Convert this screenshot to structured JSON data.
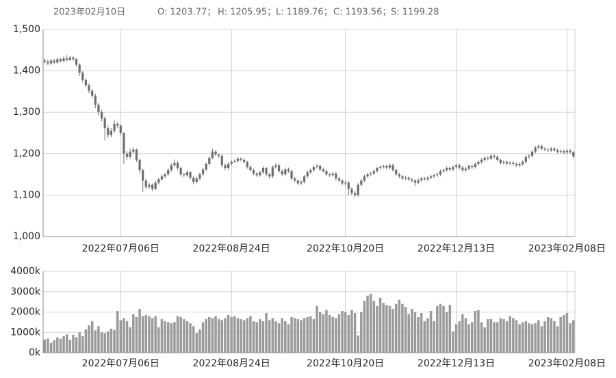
{
  "chart_data": {
    "type": "candlestick",
    "header": {
      "date": "2023年02月10日",
      "items": [
        "O: 1203.77；",
        "H: 1205.95；",
        "L: 1189.76；",
        "C: 1193.56；",
        "S: 1199.28"
      ]
    },
    "categories": [
      null,
      null,
      null,
      null,
      null,
      null,
      null,
      null,
      null,
      null,
      null,
      null,
      null,
      null,
      null,
      null,
      null,
      null,
      null,
      null,
      null,
      null,
      null,
      null,
      "2022年07月06日",
      null,
      null,
      null,
      null,
      null,
      null,
      null,
      null,
      null,
      null,
      null,
      null,
      null,
      null,
      null,
      null,
      null,
      null,
      null,
      null,
      null,
      null,
      null,
      null,
      null,
      null,
      null,
      null,
      null,
      null,
      null,
      null,
      null,
      null,
      "2022年08月24日",
      null,
      null,
      null,
      null,
      null,
      null,
      null,
      null,
      null,
      null,
      null,
      null,
      null,
      null,
      null,
      null,
      null,
      null,
      null,
      null,
      null,
      null,
      null,
      null,
      null,
      null,
      null,
      null,
      null,
      null,
      null,
      null,
      null,
      null,
      null,
      "2022年10月20日",
      null,
      null,
      null,
      null,
      null,
      null,
      null,
      null,
      null,
      null,
      null,
      null,
      null,
      null,
      null,
      null,
      null,
      null,
      null,
      null,
      null,
      null,
      null,
      null,
      null,
      null,
      null,
      null,
      null,
      null,
      null,
      null,
      null,
      null,
      "2022年12月13日",
      null,
      null,
      null,
      null,
      null,
      null,
      null,
      null,
      null,
      null,
      null,
      null,
      null,
      null,
      null,
      null,
      null,
      null,
      null,
      null,
      null,
      null,
      null,
      null,
      null,
      null,
      null,
      null,
      null,
      null,
      null,
      null,
      null,
      null,
      "2023年02月08日",
      null,
      null
    ],
    "ohlc": [
      [
        1425,
        1430,
        1418,
        1422
      ],
      [
        1422,
        1427,
        1414,
        1418
      ],
      [
        1418,
        1429,
        1414,
        1425
      ],
      [
        1425,
        1429,
        1416,
        1420
      ],
      [
        1420,
        1432,
        1417,
        1428
      ],
      [
        1428,
        1431,
        1420,
        1424
      ],
      [
        1424,
        1435,
        1421,
        1430
      ],
      [
        1430,
        1438,
        1422,
        1426
      ],
      [
        1426,
        1436,
        1423,
        1432
      ],
      [
        1432,
        1435,
        1424,
        1428
      ],
      [
        1428,
        1431,
        1410,
        1415
      ],
      [
        1415,
        1418,
        1388,
        1395
      ],
      [
        1395,
        1399,
        1372,
        1378
      ],
      [
        1378,
        1382,
        1360,
        1365
      ],
      [
        1365,
        1370,
        1346,
        1352
      ],
      [
        1352,
        1356,
        1334,
        1340
      ],
      [
        1340,
        1345,
        1310,
        1318
      ],
      [
        1318,
        1322,
        1292,
        1300
      ],
      [
        1300,
        1306,
        1278,
        1285
      ],
      [
        1285,
        1290,
        1232,
        1262
      ],
      [
        1262,
        1268,
        1238,
        1245
      ],
      [
        1245,
        1262,
        1240,
        1255
      ],
      [
        1255,
        1280,
        1250,
        1272
      ],
      [
        1272,
        1276,
        1262,
        1268
      ],
      [
        1268,
        1270,
        1244,
        1250
      ],
      [
        1250,
        1252,
        1175,
        1200
      ],
      [
        1200,
        1206,
        1185,
        1192
      ],
      [
        1192,
        1212,
        1188,
        1205
      ],
      [
        1205,
        1215,
        1200,
        1210
      ],
      [
        1210,
        1212,
        1180,
        1185
      ],
      [
        1185,
        1188,
        1152,
        1160
      ],
      [
        1160,
        1164,
        1108,
        1135
      ],
      [
        1135,
        1140,
        1114,
        1120
      ],
      [
        1120,
        1130,
        1116,
        1125
      ],
      [
        1125,
        1128,
        1110,
        1115
      ],
      [
        1115,
        1135,
        1112,
        1130
      ],
      [
        1130,
        1142,
        1126,
        1138
      ],
      [
        1138,
        1150,
        1134,
        1145
      ],
      [
        1145,
        1154,
        1141,
        1150
      ],
      [
        1150,
        1165,
        1146,
        1160
      ],
      [
        1160,
        1176,
        1156,
        1172
      ],
      [
        1172,
        1186,
        1168,
        1178
      ],
      [
        1178,
        1182,
        1160,
        1165
      ],
      [
        1165,
        1169,
        1145,
        1150
      ],
      [
        1150,
        1154,
        1143,
        1148
      ],
      [
        1148,
        1160,
        1144,
        1155
      ],
      [
        1155,
        1158,
        1138,
        1142
      ],
      [
        1142,
        1146,
        1126,
        1132
      ],
      [
        1132,
        1144,
        1128,
        1140
      ],
      [
        1140,
        1154,
        1136,
        1150
      ],
      [
        1150,
        1166,
        1146,
        1162
      ],
      [
        1162,
        1179,
        1158,
        1175
      ],
      [
        1175,
        1194,
        1171,
        1190
      ],
      [
        1190,
        1212,
        1186,
        1205
      ],
      [
        1205,
        1209,
        1194,
        1198
      ],
      [
        1198,
        1200,
        1190,
        1195
      ],
      [
        1195,
        1198,
        1166,
        1172
      ],
      [
        1172,
        1176,
        1160,
        1165
      ],
      [
        1165,
        1179,
        1161,
        1175
      ],
      [
        1175,
        1184,
        1171,
        1180
      ],
      [
        1180,
        1186,
        1178,
        1182
      ],
      [
        1182,
        1192,
        1178,
        1188
      ],
      [
        1188,
        1191,
        1181,
        1185
      ],
      [
        1185,
        1189,
        1176,
        1180
      ],
      [
        1180,
        1183,
        1164,
        1168
      ],
      [
        1168,
        1172,
        1156,
        1160
      ],
      [
        1160,
        1164,
        1148,
        1152
      ],
      [
        1152,
        1156,
        1144,
        1148
      ],
      [
        1148,
        1159,
        1144,
        1155
      ],
      [
        1155,
        1170,
        1151,
        1165
      ],
      [
        1165,
        1168,
        1146,
        1150
      ],
      [
        1150,
        1154,
        1140,
        1145
      ],
      [
        1145,
        1172,
        1141,
        1168
      ],
      [
        1168,
        1177,
        1164,
        1172
      ],
      [
        1172,
        1176,
        1154,
        1158
      ],
      [
        1158,
        1162,
        1146,
        1150
      ],
      [
        1150,
        1166,
        1146,
        1162
      ],
      [
        1162,
        1166,
        1154,
        1158
      ],
      [
        1158,
        1162,
        1136,
        1140
      ],
      [
        1140,
        1144,
        1131,
        1135
      ],
      [
        1135,
        1138,
        1124,
        1128
      ],
      [
        1128,
        1136,
        1124,
        1132
      ],
      [
        1132,
        1149,
        1128,
        1145
      ],
      [
        1145,
        1159,
        1141,
        1155
      ],
      [
        1155,
        1164,
        1151,
        1160
      ],
      [
        1160,
        1172,
        1156,
        1168
      ],
      [
        1168,
        1175,
        1164,
        1170
      ],
      [
        1170,
        1174,
        1158,
        1162
      ],
      [
        1162,
        1166,
        1154,
        1158
      ],
      [
        1158,
        1162,
        1146,
        1150
      ],
      [
        1150,
        1153,
        1144,
        1148
      ],
      [
        1148,
        1156,
        1144,
        1152
      ],
      [
        1152,
        1156,
        1136,
        1140
      ],
      [
        1140,
        1144,
        1131,
        1135
      ],
      [
        1135,
        1138,
        1124,
        1128
      ],
      [
        1128,
        1134,
        1122,
        1130
      ],
      [
        1130,
        1134,
        1100,
        1115
      ],
      [
        1115,
        1119,
        1100,
        1105
      ],
      [
        1105,
        1110,
        1094,
        1100
      ],
      [
        1100,
        1129,
        1096,
        1125
      ],
      [
        1125,
        1139,
        1121,
        1135
      ],
      [
        1135,
        1149,
        1131,
        1145
      ],
      [
        1145,
        1154,
        1141,
        1150
      ],
      [
        1150,
        1156,
        1146,
        1152
      ],
      [
        1152,
        1162,
        1148,
        1158
      ],
      [
        1158,
        1169,
        1154,
        1165
      ],
      [
        1165,
        1172,
        1161,
        1168
      ],
      [
        1168,
        1174,
        1164,
        1170
      ],
      [
        1170,
        1174,
        1162,
        1166
      ],
      [
        1166,
        1176,
        1162,
        1172
      ],
      [
        1172,
        1176,
        1156,
        1160
      ],
      [
        1160,
        1164,
        1146,
        1150
      ],
      [
        1150,
        1154,
        1141,
        1145
      ],
      [
        1145,
        1149,
        1136,
        1140
      ],
      [
        1140,
        1146,
        1136,
        1142
      ],
      [
        1142,
        1146,
        1134,
        1138
      ],
      [
        1138,
        1142,
        1131,
        1135
      ],
      [
        1135,
        1138,
        1122,
        1130
      ],
      [
        1130,
        1140,
        1126,
        1136
      ],
      [
        1136,
        1144,
        1132,
        1140
      ],
      [
        1140,
        1144,
        1134,
        1138
      ],
      [
        1138,
        1146,
        1134,
        1142
      ],
      [
        1142,
        1149,
        1138,
        1145
      ],
      [
        1145,
        1152,
        1141,
        1148
      ],
      [
        1148,
        1154,
        1144,
        1150
      ],
      [
        1150,
        1162,
        1146,
        1158
      ],
      [
        1158,
        1164,
        1154,
        1160
      ],
      [
        1160,
        1169,
        1156,
        1165
      ],
      [
        1165,
        1169,
        1158,
        1162
      ],
      [
        1162,
        1172,
        1158,
        1168
      ],
      [
        1168,
        1176,
        1164,
        1172
      ],
      [
        1172,
        1176,
        1162,
        1166
      ],
      [
        1166,
        1170,
        1156,
        1160
      ],
      [
        1160,
        1168,
        1156,
        1164
      ],
      [
        1164,
        1174,
        1160,
        1170
      ],
      [
        1170,
        1174,
        1164,
        1168
      ],
      [
        1168,
        1179,
        1164,
        1175
      ],
      [
        1175,
        1184,
        1171,
        1180
      ],
      [
        1180,
        1189,
        1176,
        1185
      ],
      [
        1185,
        1194,
        1181,
        1190
      ],
      [
        1190,
        1194,
        1184,
        1188
      ],
      [
        1188,
        1199,
        1184,
        1195
      ],
      [
        1195,
        1199,
        1188,
        1192
      ],
      [
        1192,
        1196,
        1181,
        1185
      ],
      [
        1185,
        1189,
        1174,
        1178
      ],
      [
        1178,
        1184,
        1174,
        1180
      ],
      [
        1180,
        1184,
        1172,
        1176
      ],
      [
        1176,
        1182,
        1172,
        1178
      ],
      [
        1178,
        1182,
        1171,
        1175
      ],
      [
        1175,
        1179,
        1168,
        1172
      ],
      [
        1172,
        1179,
        1168,
        1175
      ],
      [
        1175,
        1184,
        1171,
        1180
      ],
      [
        1180,
        1196,
        1176,
        1192
      ],
      [
        1192,
        1199,
        1188,
        1195
      ],
      [
        1195,
        1209,
        1191,
        1205
      ],
      [
        1205,
        1219,
        1201,
        1215
      ],
      [
        1215,
        1222,
        1211,
        1218
      ],
      [
        1218,
        1222,
        1208,
        1212
      ],
      [
        1212,
        1216,
        1206,
        1210
      ],
      [
        1210,
        1214,
        1204,
        1208
      ],
      [
        1208,
        1216,
        1204,
        1212
      ],
      [
        1212,
        1216,
        1204,
        1208
      ],
      [
        1208,
        1212,
        1201,
        1205
      ],
      [
        1205,
        1210,
        1201,
        1206
      ],
      [
        1206,
        1210,
        1199,
        1203
      ],
      [
        1203,
        1211,
        1199,
        1207
      ],
      [
        1207,
        1211,
        1200,
        1204
      ],
      [
        1203.77,
        1205.95,
        1189.76,
        1193.56
      ]
    ],
    "color": "#6e6e6e",
    "ylim": [
      1000,
      1500
    ],
    "yticks": [
      {
        "value": 1000,
        "label": "1,000"
      },
      {
        "value": 1100,
        "label": "1,100"
      },
      {
        "value": 1200,
        "label": "1,200"
      },
      {
        "value": 1300,
        "label": "1,300"
      },
      {
        "value": 1400,
        "label": "1,400"
      },
      {
        "value": 1500,
        "label": "1,500"
      }
    ],
    "grid": true,
    "volume": {
      "values": [
        650,
        700,
        480,
        620,
        750,
        680,
        820,
        900,
        640,
        880,
        760,
        1000,
        820,
        1150,
        1350,
        1550,
        1100,
        1300,
        1000,
        960,
        1050,
        1180,
        1120,
        2050,
        1600,
        1700,
        1550,
        1250,
        1900,
        1750,
        2150,
        1800,
        1850,
        1800,
        1700,
        1800,
        1250,
        1650,
        1550,
        1500,
        1450,
        1500,
        1800,
        1750,
        1650,
        1550,
        1450,
        1300,
        960,
        1150,
        1500,
        1650,
        1750,
        1700,
        1800,
        1650,
        1600,
        1700,
        1850,
        1750,
        1800,
        1700,
        1650,
        1600,
        1700,
        1800,
        1550,
        1500,
        1650,
        1550,
        1950,
        1600,
        1700,
        1550,
        1450,
        1700,
        1550,
        1400,
        1750,
        1700,
        1650,
        1600,
        1700,
        1750,
        1800,
        1650,
        2300,
        2000,
        1900,
        2100,
        1850,
        1750,
        1700,
        1900,
        2050,
        2000,
        1850,
        2100,
        1950,
        850,
        2000,
        2550,
        2800,
        2900,
        2550,
        2300,
        2700,
        2450,
        2350,
        2300,
        2150,
        2400,
        2600,
        2400,
        2250,
        1900,
        2150,
        2000,
        1750,
        1950,
        1550,
        1700,
        2050,
        1550,
        2300,
        2400,
        2300,
        2000,
        2350,
        1050,
        1400,
        1550,
        1900,
        1700,
        1400,
        1500,
        2050,
        2100,
        1500,
        1250,
        1650,
        1650,
        1500,
        1500,
        1700,
        1650,
        1550,
        1800,
        1700,
        1600,
        1400,
        1500,
        1550,
        1450,
        1400,
        1450,
        1600,
        1300,
        1550,
        1750,
        1700,
        1550,
        1300,
        1750,
        1850,
        1950,
        1450,
        1600
      ],
      "color": "#9a9a9a",
      "ylim": [
        0,
        4000
      ],
      "yticks": [
        {
          "value": 0,
          "label": "0k"
        },
        {
          "value": 1000,
          "label": "1000k"
        },
        {
          "value": 2000,
          "label": "2000k"
        },
        {
          "value": 3000,
          "label": "3000k"
        },
        {
          "value": 4000,
          "label": "4000k"
        }
      ]
    }
  }
}
